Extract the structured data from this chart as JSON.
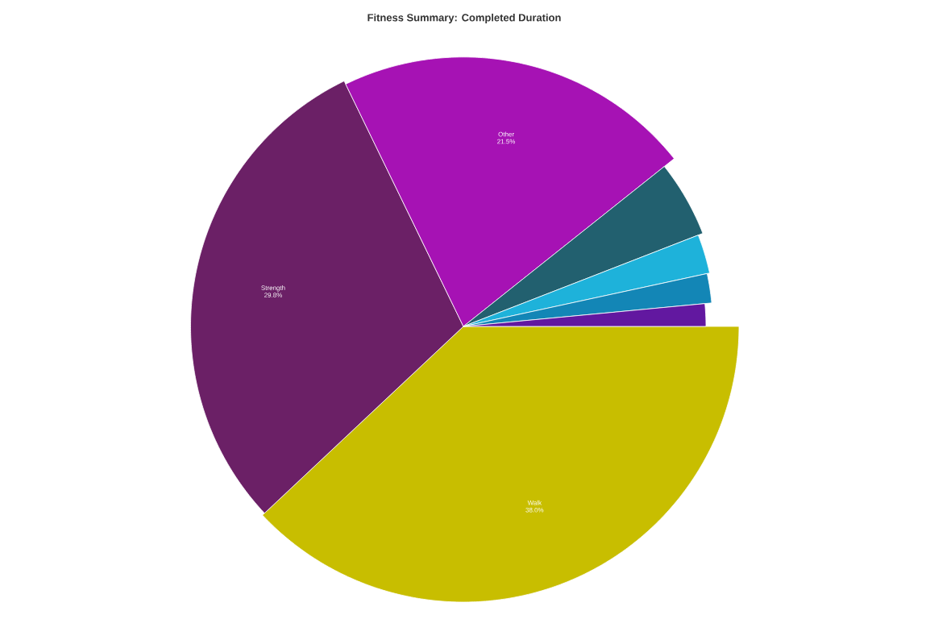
{
  "chart_data": {
    "type": "pie",
    "title": "Fitness Summary: Completed Duration",
    "categories": [
      "Walk",
      "Strength",
      "Other",
      null,
      null,
      null,
      null
    ],
    "values": [
      38.0,
      29.8,
      21.5,
      4.8,
      2.5,
      1.9,
      1.5
    ],
    "colors": [
      "#c8be00",
      "#6b2066",
      "#a612b4",
      "#22606f",
      "#1eb2da",
      "#1386b6",
      "#6218a0"
    ],
    "value_labels": [
      "38.0%",
      "29.8%",
      "21.5%",
      null,
      null,
      null,
      null
    ]
  }
}
